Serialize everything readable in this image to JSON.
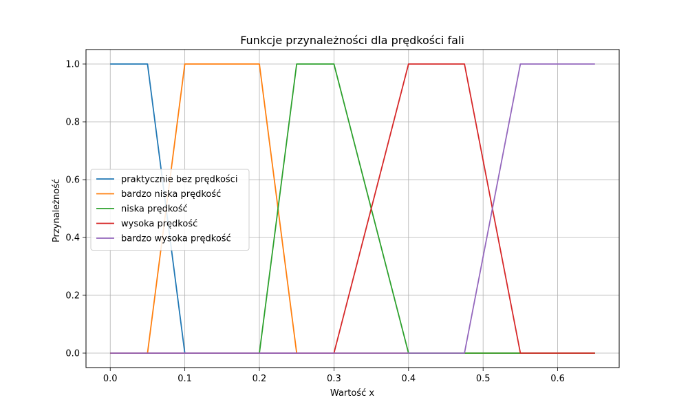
{
  "chart_data": {
    "type": "line",
    "title": "Funkcje przynależności dla prędkości fali",
    "xlabel": "Wartość x",
    "ylabel": "Przynależność",
    "xlim": [
      -0.0325,
      0.6825
    ],
    "ylim": [
      -0.05,
      1.05
    ],
    "xticks": [
      0.0,
      0.1,
      0.2,
      0.3,
      0.4,
      0.5,
      0.6
    ],
    "xtick_labels": [
      "0.0",
      "0.1",
      "0.2",
      "0.3",
      "0.4",
      "0.5",
      "0.6"
    ],
    "yticks": [
      0.0,
      0.2,
      0.4,
      0.6,
      0.8,
      1.0
    ],
    "ytick_labels": [
      "0.0",
      "0.2",
      "0.4",
      "0.6",
      "0.8",
      "1.0"
    ],
    "grid": true,
    "legend_position": "center-left",
    "series": [
      {
        "name": "praktycznie bez prędkości",
        "color": "#1f77b4",
        "x": [
          0.0,
          0.05,
          0.1,
          0.65
        ],
        "y": [
          1,
          1,
          0,
          0
        ]
      },
      {
        "name": "bardzo niska prędkość",
        "color": "#ff7f0e",
        "x": [
          0.0,
          0.05,
          0.1,
          0.2,
          0.25,
          0.65
        ],
        "y": [
          0,
          0,
          1,
          1,
          0,
          0
        ]
      },
      {
        "name": "niska prędkość",
        "color": "#2ca02c",
        "x": [
          0.0,
          0.2,
          0.25,
          0.3,
          0.4,
          0.65
        ],
        "y": [
          0,
          0,
          1,
          1,
          0,
          0
        ]
      },
      {
        "name": "wysoka prędkość",
        "color": "#d62728",
        "x": [
          0.0,
          0.3,
          0.4,
          0.475,
          0.55,
          0.65
        ],
        "y": [
          0,
          0,
          1,
          1,
          0,
          0
        ]
      },
      {
        "name": "bardzo wysoka prędkość",
        "color": "#9467bd",
        "x": [
          0.0,
          0.475,
          0.55,
          0.65
        ],
        "y": [
          0,
          0,
          1,
          1
        ]
      }
    ]
  }
}
